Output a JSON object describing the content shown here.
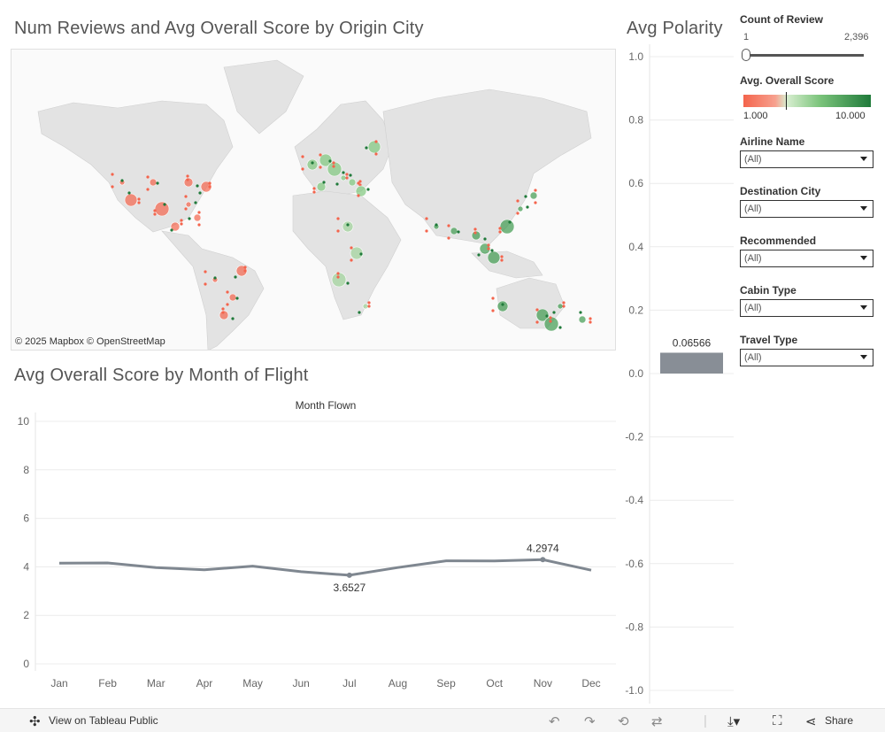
{
  "map": {
    "title": "Num Reviews and Avg Overall Score by Origin City",
    "attribution": "© 2025 Mapbox  © OpenStreetMap"
  },
  "line": {
    "title": "Avg Overall Score by Month of Flight"
  },
  "bar": {
    "title": "Avg Polarity"
  },
  "filters": {
    "count_label": "Count of Review",
    "count_min": "1",
    "count_max": "2,396",
    "score_label": "Avg. Overall Score",
    "score_min": "1.000",
    "score_max": "10.000",
    "dropdowns": [
      {
        "label": "Airline Name",
        "value": "(All)"
      },
      {
        "label": "Destination City",
        "value": "(All)"
      },
      {
        "label": "Recommended",
        "value": "(All)"
      },
      {
        "label": "Cabin Type",
        "value": "(All)"
      },
      {
        "label": "Travel Type",
        "value": "(All)"
      }
    ]
  },
  "footer": {
    "view_label": "View on Tableau Public",
    "share_label": "Share"
  },
  "colors": {
    "line": "#7f8790",
    "bar": "#888e96",
    "grid": "#ececec",
    "low_score": "#f4644c",
    "high_score": "#1f7a3a"
  },
  "chart_data": [
    {
      "type": "line",
      "title": "Avg Overall Score by Month of Flight",
      "xlabel": "Month Flown",
      "ylabel": "",
      "categories": [
        "Jan",
        "Feb",
        "Mar",
        "Apr",
        "May",
        "Jun",
        "Jul",
        "Aug",
        "Sep",
        "Oct",
        "Nov",
        "Dec"
      ],
      "values": [
        4.15,
        4.16,
        3.97,
        3.88,
        4.03,
        3.8,
        3.6527,
        3.97,
        4.25,
        4.24,
        4.2974,
        3.86
      ],
      "labeled_points": [
        {
          "category": "Jul",
          "label": "3.6527"
        },
        {
          "category": "Nov",
          "label": "4.2974"
        }
      ],
      "ylim": [
        0,
        10
      ],
      "yticks": [
        0,
        2,
        4,
        6,
        8,
        10
      ],
      "grid": true
    },
    {
      "type": "bar",
      "title": "Avg Polarity",
      "categories": [
        ""
      ],
      "values": [
        0.06566
      ],
      "value_label": "0.06566",
      "ylim": [
        -1.0,
        1.0
      ],
      "yticks": [
        "1.0",
        "0.8",
        "0.6",
        "0.4",
        "0.2",
        "0.0",
        "-0.2",
        "-0.4",
        "-0.6",
        "-0.8",
        "-1.0"
      ],
      "grid": true
    }
  ]
}
